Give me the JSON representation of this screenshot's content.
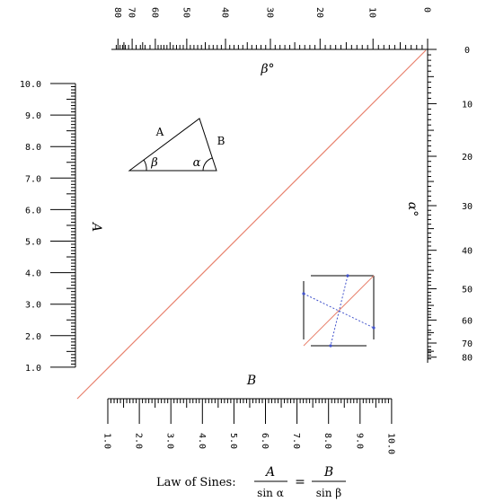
{
  "title": {
    "prefix": "Law of Sines:",
    "num_left": "A",
    "den_left": "sin α",
    "equals": "=",
    "num_right": "B",
    "den_right": "sin β"
  },
  "scales": {
    "beta": {
      "label": "β°",
      "values": [
        0,
        10,
        20,
        30,
        40,
        50,
        60,
        70,
        80
      ],
      "labels": [
        "0",
        "10",
        "20",
        "30",
        "40",
        "50",
        "60",
        "70",
        "80"
      ]
    },
    "alpha": {
      "label": "α°",
      "values": [
        0,
        10,
        20,
        30,
        40,
        50,
        60,
        70,
        80
      ],
      "labels": [
        "0",
        "10",
        "20",
        "30",
        "40",
        "50",
        "60",
        "70",
        "80"
      ]
    },
    "a": {
      "label": "A",
      "values": [
        1,
        2,
        3,
        4,
        5,
        6,
        7,
        8,
        9,
        10
      ],
      "labels": [
        "1.0",
        "2.0",
        "3.0",
        "4.0",
        "5.0",
        "6.0",
        "7.0",
        "8.0",
        "9.0",
        "10.0"
      ]
    },
    "b": {
      "label": "B",
      "values": [
        1,
        2,
        3,
        4,
        5,
        6,
        7,
        8,
        9,
        10
      ],
      "labels": [
        "1.0",
        "2.0",
        "3.0",
        "4.0",
        "5.0",
        "6.0",
        "7.0",
        "8.0",
        "9.0",
        "10.0"
      ]
    }
  },
  "triangle": {
    "side_a": "A",
    "side_b": "B",
    "angle_beta": "β",
    "angle_alpha": "α"
  },
  "colors": {
    "diagonal": "#e8826e",
    "guide": "#4455cc",
    "ink": "#000000"
  }
}
